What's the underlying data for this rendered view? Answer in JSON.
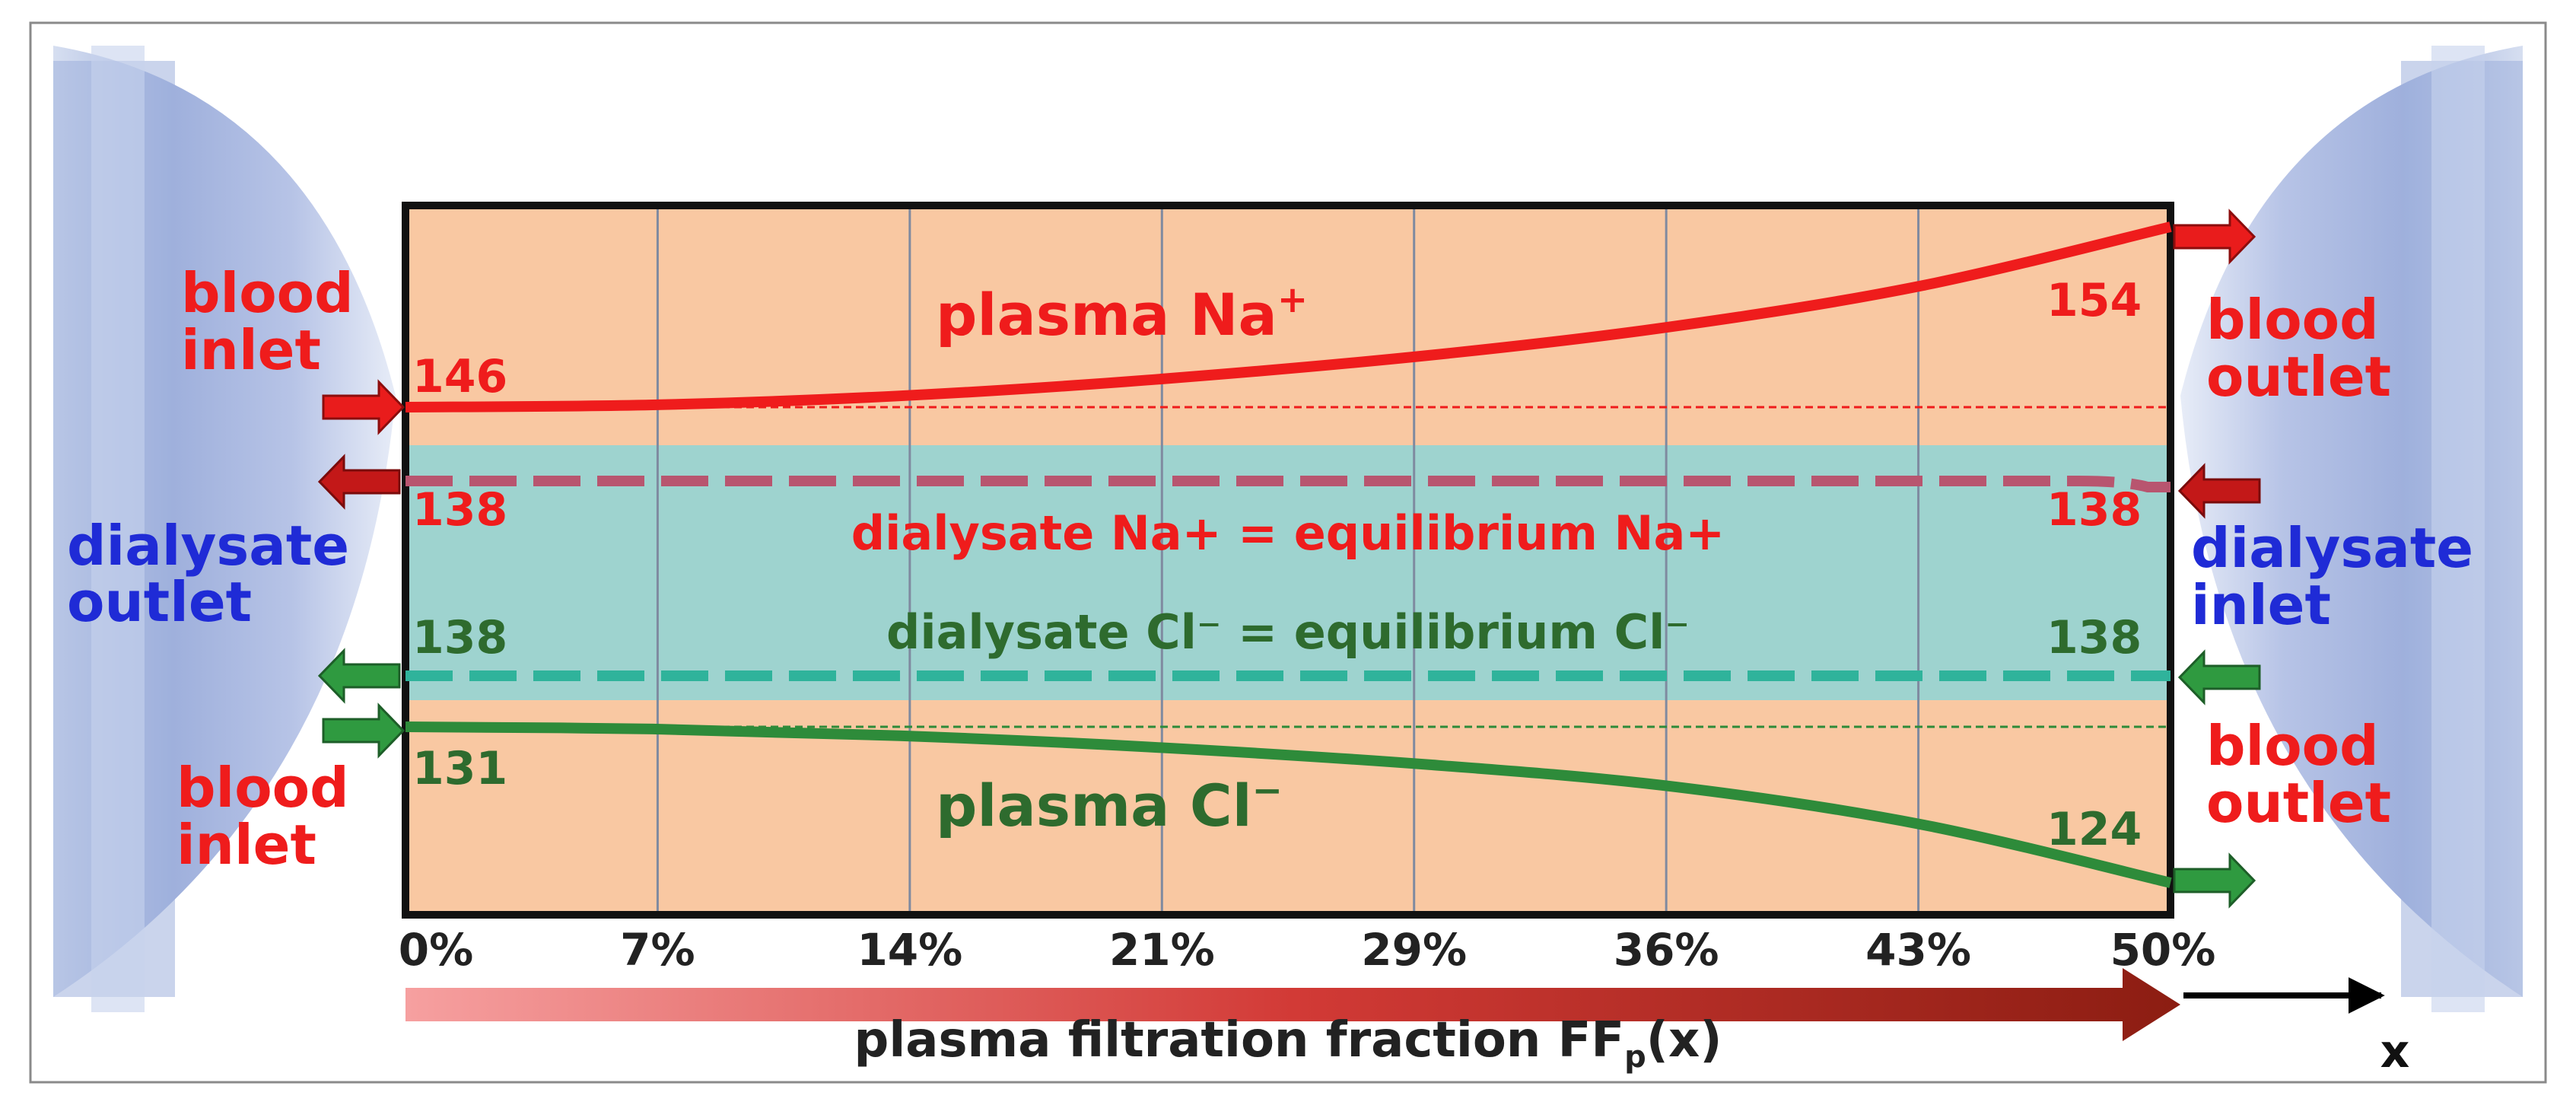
{
  "colors": {
    "plot_bg": "#f9c8a2",
    "band": "#9ed3cf",
    "sodium": "#ef1c1c",
    "sodium_dialysate": "#b8556f",
    "chloride": "#2e8b3a",
    "chloride_dialysate": "#2fb39b",
    "blue_label": "#1f2bd6",
    "dark_label": "#222222"
  },
  "labels": {
    "blood_inlet_top": [
      "blood",
      "inlet"
    ],
    "blood_inlet_bottom": [
      "blood",
      "inlet"
    ],
    "blood_outlet_top": [
      "blood",
      "outlet"
    ],
    "blood_outlet_bottom": [
      "blood",
      "outlet"
    ],
    "dialysate_outlet": [
      "dialysate",
      "outlet"
    ],
    "dialysate_inlet": [
      "dialysate",
      "inlet"
    ],
    "plasma_na_base": "plasma Na",
    "plasma_na_sup": "+",
    "dialysate_na": "dialysate Na+ = equilibrium Na+",
    "dialysate_cl": "dialysate Cl⁻  =  equilibrium Cl⁻",
    "plasma_cl_base": "plasma Cl",
    "plasma_cl_sup": "−",
    "x_axis_base": "plasma filtration fraction FF",
    "x_axis_sub": "p",
    "x_axis_tail": "(x)",
    "x_arrow_label": "x"
  },
  "chart_data": {
    "type": "line",
    "x_ticks": [
      "0%",
      "7%",
      "14%",
      "21%",
      "29%",
      "36%",
      "43%",
      "50%"
    ],
    "series": [
      {
        "name": "plasma Na+",
        "x": [
          0,
          7,
          14,
          21,
          29,
          36,
          43,
          50
        ],
        "y": [
          146,
          146.1,
          146.5,
          147.2,
          148.3,
          149.6,
          151.4,
          154
        ]
      },
      {
        "name": "dialysate Na+ = equilibrium Na+",
        "x": [
          0,
          50
        ],
        "y": [
          138,
          138
        ]
      },
      {
        "name": "dialysate Cl⁻ = equilibrium Cl⁻",
        "x": [
          0,
          50
        ],
        "y": [
          138,
          138
        ]
      },
      {
        "name": "plasma Cl⁻",
        "x": [
          0,
          7,
          14,
          21,
          29,
          36,
          43,
          50
        ],
        "y": [
          131,
          130.9,
          130.6,
          130.1,
          129.3,
          128.3,
          126.6,
          124
        ]
      }
    ],
    "value_labels": {
      "na_inlet": "146",
      "na_outlet": "154",
      "na_dialysate_left": "138",
      "na_dialysate_right": "138",
      "cl_dialysate_left": "138",
      "cl_dialysate_right": "138",
      "cl_inlet": "131",
      "cl_outlet": "124"
    }
  }
}
